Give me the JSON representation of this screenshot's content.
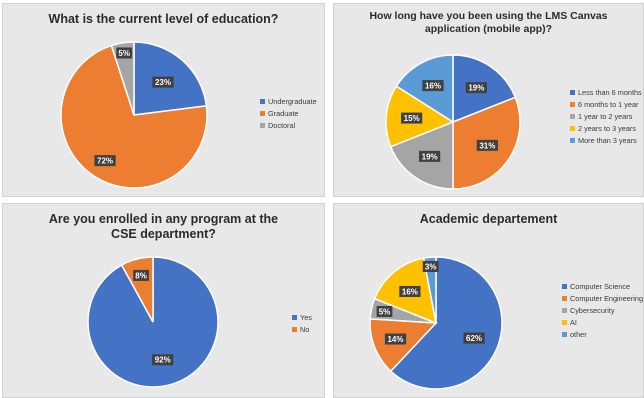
{
  "chart_data": [
    {
      "type": "pie",
      "title_lines": [
        "What is the current level of education?"
      ],
      "categories": [
        "Undergraduate",
        "Graduate",
        "Doctoral"
      ],
      "values": [
        23,
        72,
        5
      ],
      "labels": [
        "23%",
        "72%",
        "5%"
      ],
      "colors": [
        "#4472c4",
        "#ed7d31",
        "#a5a5a5"
      ],
      "legend_position": "right"
    },
    {
      "type": "pie",
      "title_lines": [
        "How long have you been using the LMS Canvas",
        "application (mobile app)?"
      ],
      "categories": [
        "Less than 6 months",
        "6 months to 1 year",
        "1 year to 2 years",
        "2 years to 3 years",
        "More than 3 years"
      ],
      "values": [
        19,
        31,
        19,
        15,
        16
      ],
      "labels": [
        "19%",
        "31%",
        "19%",
        "15%",
        "16%"
      ],
      "colors": [
        "#4472c4",
        "#ed7d31",
        "#a5a5a5",
        "#ffc000",
        "#5b9bd5"
      ],
      "legend_position": "right"
    },
    {
      "type": "pie",
      "title_lines": [
        "Are you enrolled in any program at the",
        "CSE department?"
      ],
      "categories": [
        "Yes",
        "No"
      ],
      "values": [
        92,
        8
      ],
      "labels": [
        "92%",
        "8%"
      ],
      "colors": [
        "#4472c4",
        "#ed7d31"
      ],
      "legend_position": "right"
    },
    {
      "type": "pie",
      "title_lines": [
        "Academic departement"
      ],
      "categories": [
        "Computer Science",
        "Computer Engineering",
        "Cybersecurity",
        "AI",
        "other"
      ],
      "values": [
        62,
        14,
        5,
        16,
        3
      ],
      "labels": [
        "62%",
        "14%",
        "5%",
        "16%",
        "3%"
      ],
      "colors": [
        "#4472c4",
        "#ed7d31",
        "#a5a5a5",
        "#ffc000",
        "#5b9bd5"
      ],
      "legend_position": "right"
    }
  ]
}
